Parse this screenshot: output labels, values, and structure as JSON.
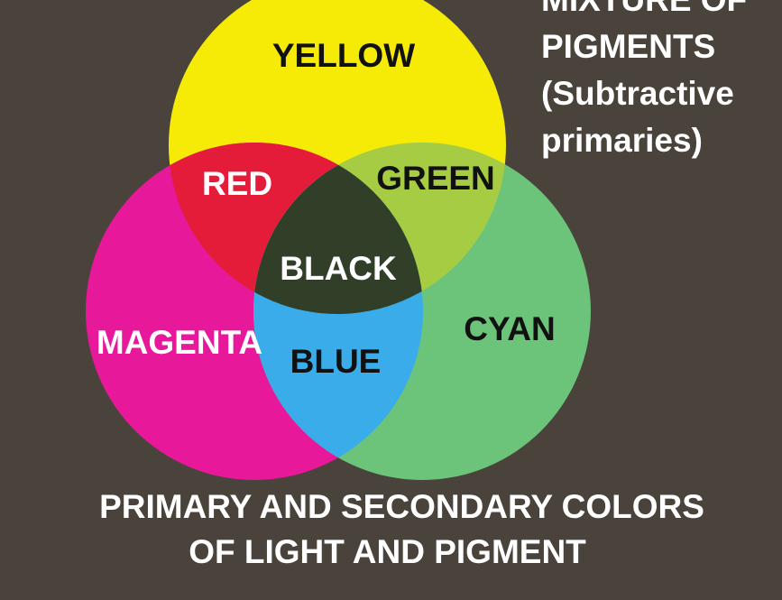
{
  "diagram": {
    "title_lines": [
      "MIXTURE OF",
      "PIGMENTS",
      "(Subtractive",
      "primaries)"
    ],
    "caption_lines": [
      "PRIMARY AND SECONDARY COLORS",
      "OF LIGHT AND PIGMENT"
    ],
    "circles": {
      "yellow": {
        "label": "YELLOW",
        "color": "#f5eb06"
      },
      "magenta": {
        "label": "MAGENTA",
        "color": "#e8189a"
      },
      "cyan": {
        "label": "CYAN",
        "color": "#6cc47a"
      }
    },
    "overlaps": {
      "red": {
        "label": "RED",
        "color": "#e41c3a"
      },
      "green": {
        "label": "GREEN",
        "color": "#a6cc44"
      },
      "blue": {
        "label": "BLUE",
        "color": "#3aacea"
      },
      "black": {
        "label": "BLACK",
        "color": "#313f28"
      }
    },
    "background_color": "#4a433c"
  }
}
